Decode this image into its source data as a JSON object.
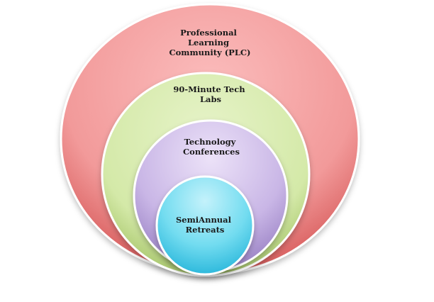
{
  "diagram": {
    "circles": [
      {
        "lines": [
          "Professional",
          "Learning",
          "Community (PLC)"
        ],
        "color": "#ee8080"
      },
      {
        "lines": [
          "90-Minute Tech",
          "Labs"
        ],
        "color": "#cfe6a0"
      },
      {
        "lines": [
          "Technology",
          "Conferences"
        ],
        "color": "#c3aee0"
      },
      {
        "lines": [
          "SemiAnnual",
          "Retreats"
        ],
        "color": "#56d4ec"
      }
    ]
  }
}
